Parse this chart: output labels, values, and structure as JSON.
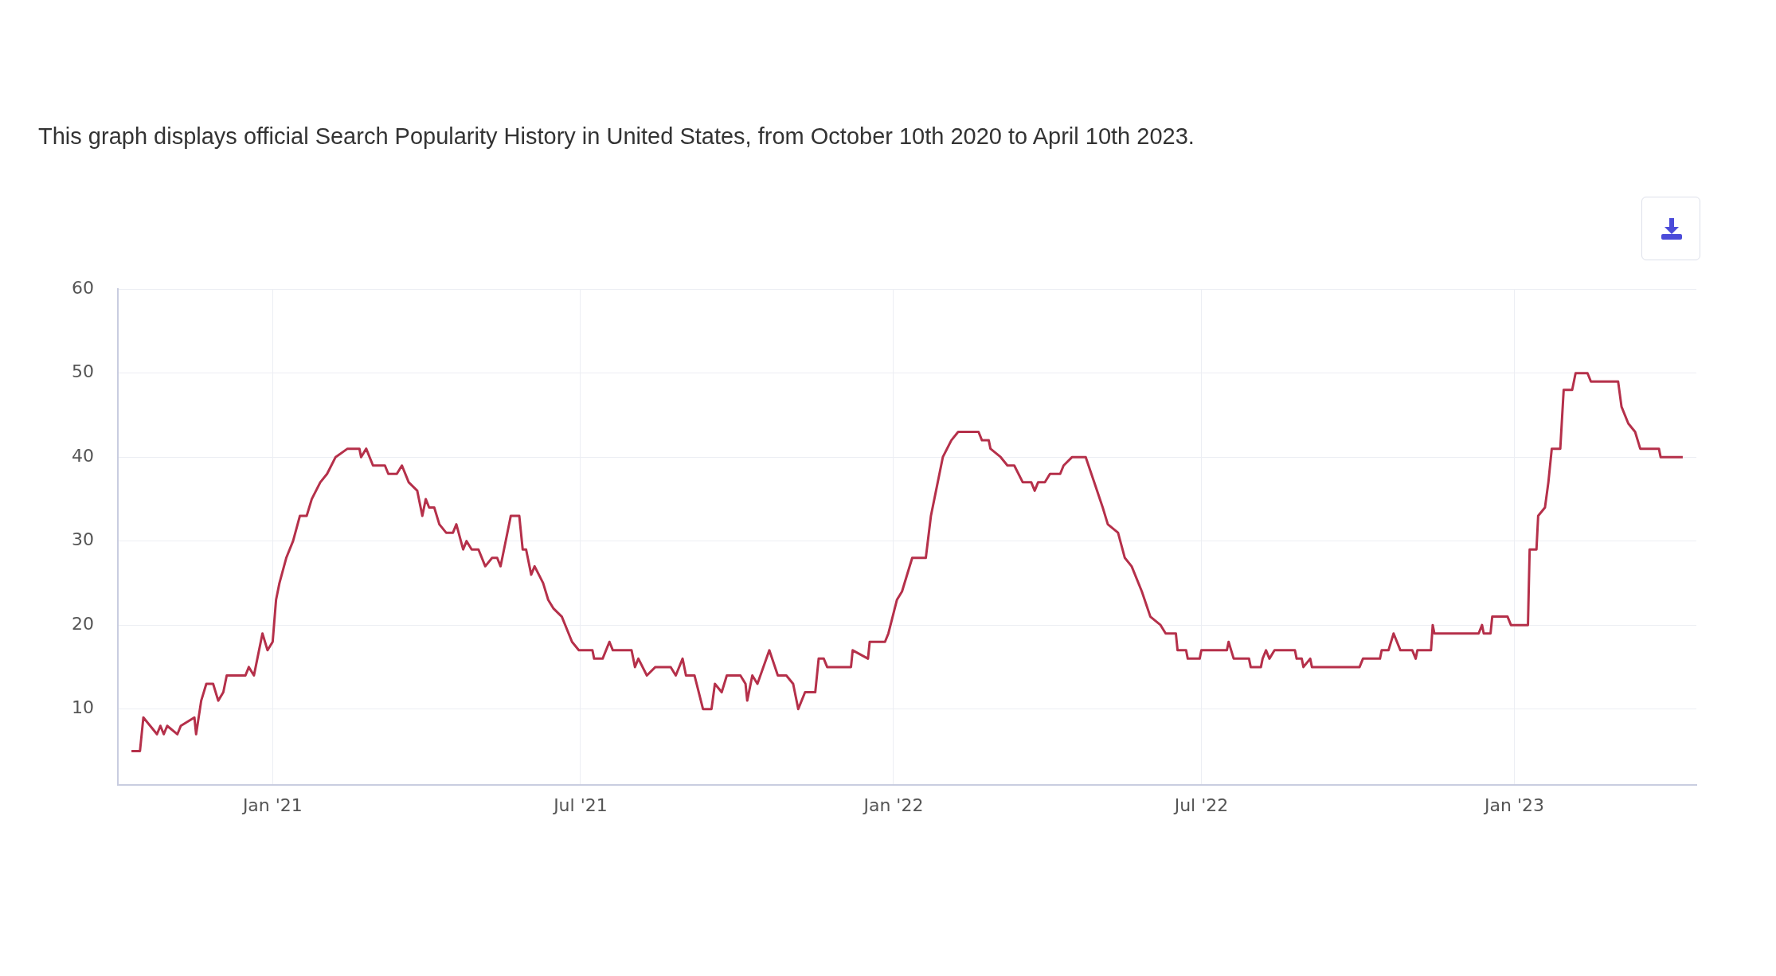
{
  "chart_data": {
    "type": "line",
    "title": "This graph displays official Search Popularity History in United States, from October 10th 2020 to April 10th 2023.",
    "xlim": [
      "2020-10-02",
      "2023-04-18"
    ],
    "xticks": [
      {
        "value": "2021-01-01",
        "label": "Jan '21"
      },
      {
        "value": "2021-07-01",
        "label": "Jul '21"
      },
      {
        "value": "2022-01-01",
        "label": "Jan '22"
      },
      {
        "value": "2022-07-01",
        "label": "Jul '22"
      },
      {
        "value": "2023-01-01",
        "label": "Jan '23"
      }
    ],
    "ylim": [
      1,
      60
    ],
    "yticks": [
      10,
      20,
      30,
      40,
      50,
      60
    ],
    "grid": true,
    "legend": false,
    "marker": "none",
    "line_style": "solid",
    "series": [
      {
        "color": "#b5304a",
        "x": [
          "2020-10-10",
          "2020-10-15",
          "2020-10-17",
          "2020-10-21",
          "2020-10-25",
          "2020-10-27",
          "2020-10-29",
          "2020-10-31",
          "2020-11-06",
          "2020-11-08",
          "2020-11-16",
          "2020-11-17",
          "2020-11-20",
          "2020-11-23",
          "2020-11-27",
          "2020-11-30",
          "2020-12-03",
          "2020-12-05",
          "2020-12-16",
          "2020-12-18",
          "2020-12-21",
          "2020-12-23",
          "2020-12-26",
          "2020-12-29",
          "2021-01-01",
          "2021-01-03",
          "2021-01-05",
          "2021-01-09",
          "2021-01-13",
          "2021-01-17",
          "2021-01-21",
          "2021-01-24",
          "2021-01-29",
          "2021-02-02",
          "2021-02-07",
          "2021-02-14",
          "2021-02-21",
          "2021-02-22",
          "2021-02-25",
          "2021-03-01",
          "2021-03-08",
          "2021-03-10",
          "2021-03-15",
          "2021-03-18",
          "2021-03-22",
          "2021-03-27",
          "2021-03-30",
          "2021-04-01",
          "2021-04-03",
          "2021-04-06",
          "2021-04-09",
          "2021-04-13",
          "2021-04-17",
          "2021-04-19",
          "2021-04-23",
          "2021-04-25",
          "2021-04-28",
          "2021-05-02",
          "2021-05-06",
          "2021-05-10",
          "2021-05-13",
          "2021-05-15",
          "2021-05-18",
          "2021-05-21",
          "2021-05-26",
          "2021-05-28",
          "2021-05-30",
          "2021-06-02",
          "2021-06-04",
          "2021-06-09",
          "2021-06-12",
          "2021-06-15",
          "2021-06-20",
          "2021-06-26",
          "2021-06-30",
          "2021-07-08",
          "2021-07-09",
          "2021-07-14",
          "2021-07-18",
          "2021-07-20",
          "2021-07-31",
          "2021-08-02",
          "2021-08-04",
          "2021-08-09",
          "2021-08-14",
          "2021-08-23",
          "2021-08-26",
          "2021-08-30",
          "2021-09-01",
          "2021-09-06",
          "2021-09-11",
          "2021-09-16",
          "2021-09-18",
          "2021-09-22",
          "2021-09-25",
          "2021-10-03",
          "2021-10-06",
          "2021-10-07",
          "2021-10-10",
          "2021-10-13",
          "2021-10-20",
          "2021-10-25",
          "2021-10-30",
          "2021-11-03",
          "2021-11-06",
          "2021-11-10",
          "2021-11-16",
          "2021-11-18",
          "2021-11-21",
          "2021-11-23",
          "2021-12-01",
          "2021-12-07",
          "2021-12-08",
          "2021-12-17",
          "2021-12-18",
          "2021-12-27",
          "2021-12-29",
          "2022-01-03",
          "2022-01-06",
          "2022-01-12",
          "2022-01-20",
          "2022-01-23",
          "2022-01-26",
          "2022-01-30",
          "2022-02-04",
          "2022-02-08",
          "2022-02-20",
          "2022-02-22",
          "2022-02-26",
          "2022-02-27",
          "2022-03-05",
          "2022-03-09",
          "2022-03-13",
          "2022-03-18",
          "2022-03-23",
          "2022-03-25",
          "2022-03-27",
          "2022-03-31",
          "2022-04-03",
          "2022-04-09",
          "2022-04-11",
          "2022-04-16",
          "2022-04-24",
          "2022-04-29",
          "2022-05-04",
          "2022-05-07",
          "2022-05-13",
          "2022-05-17",
          "2022-05-21",
          "2022-05-27",
          "2022-06-01",
          "2022-06-07",
          "2022-06-10",
          "2022-06-16",
          "2022-06-17",
          "2022-06-22",
          "2022-06-23",
          "2022-06-30",
          "2022-07-01",
          "2022-07-16",
          "2022-07-17",
          "2022-07-20",
          "2022-07-29",
          "2022-07-30",
          "2022-08-05",
          "2022-08-06",
          "2022-08-08",
          "2022-08-10",
          "2022-08-13",
          "2022-08-25",
          "2022-08-26",
          "2022-08-29",
          "2022-08-30",
          "2022-09-03",
          "2022-09-04",
          "2022-10-02",
          "2022-10-04",
          "2022-10-14",
          "2022-10-15",
          "2022-10-19",
          "2022-10-22",
          "2022-10-26",
          "2022-11-02",
          "2022-11-04",
          "2022-11-05",
          "2022-11-13",
          "2022-11-14",
          "2022-11-15",
          "2022-12-11",
          "2022-12-13",
          "2022-12-14",
          "2022-12-18",
          "2022-12-19",
          "2022-12-28",
          "2022-12-30",
          "2023-01-09",
          "2023-01-10",
          "2023-01-14",
          "2023-01-15",
          "2023-01-19",
          "2023-01-21",
          "2023-01-23",
          "2023-01-28",
          "2023-01-30",
          "2023-02-04",
          "2023-02-06",
          "2023-02-13",
          "2023-02-15",
          "2023-03-03",
          "2023-03-05",
          "2023-03-09",
          "2023-03-13",
          "2023-03-16",
          "2023-03-27",
          "2023-03-28",
          "2023-04-10"
        ],
        "values": [
          5,
          5,
          9,
          8,
          7,
          8,
          7,
          8,
          7,
          8,
          9,
          7,
          11,
          13,
          13,
          11,
          12,
          14,
          14,
          15,
          14,
          16,
          19,
          17,
          18,
          23,
          25,
          28,
          30,
          33,
          33,
          35,
          37,
          38,
          40,
          41,
          41,
          40,
          41,
          39,
          39,
          38,
          38,
          39,
          37,
          36,
          33,
          35,
          34,
          34,
          32,
          31,
          31,
          32,
          29,
          30,
          29,
          29,
          27,
          28,
          28,
          27,
          30,
          33,
          33,
          29,
          29,
          26,
          27,
          25,
          23,
          22,
          21,
          18,
          17,
          17,
          16,
          16,
          18,
          17,
          17,
          15,
          16,
          14,
          15,
          15,
          14,
          16,
          14,
          14,
          10,
          10,
          13,
          12,
          14,
          14,
          13,
          11,
          14,
          13,
          17,
          14,
          14,
          13,
          10,
          12,
          12,
          16,
          16,
          15,
          15,
          15,
          17,
          16,
          18,
          18,
          19,
          23,
          24,
          28,
          28,
          33,
          36,
          40,
          42,
          43,
          43,
          42,
          42,
          41,
          40,
          39,
          39,
          37,
          37,
          36,
          37,
          37,
          38,
          38,
          39,
          40,
          40,
          37,
          34,
          32,
          31,
          28,
          27,
          24,
          21,
          20,
          19,
          19,
          17,
          17,
          16,
          16,
          17,
          17,
          18,
          16,
          16,
          15,
          15,
          16,
          17,
          16,
          17,
          17,
          16,
          16,
          15,
          16,
          15,
          15,
          16,
          16,
          17,
          17,
          19,
          17,
          17,
          16,
          17,
          17,
          20,
          19,
          19,
          20,
          19,
          19,
          21,
          21,
          20,
          20,
          29,
          29,
          33,
          34,
          37,
          41,
          41,
          48,
          48,
          50,
          50,
          49,
          49,
          46,
          44,
          43,
          41,
          41,
          40,
          40
        ]
      }
    ]
  }
}
